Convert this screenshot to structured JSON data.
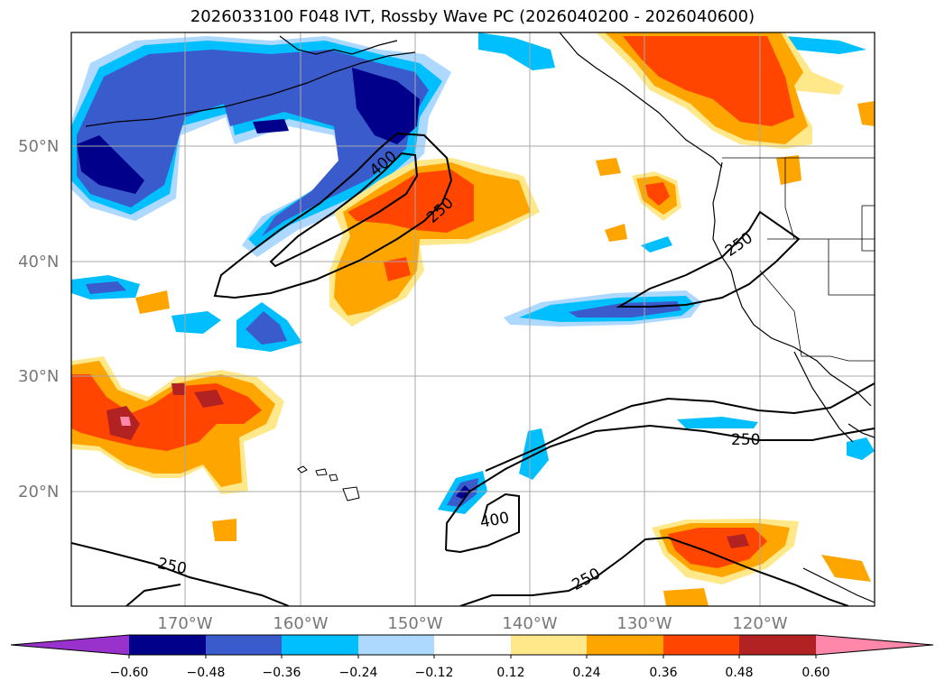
{
  "title": "2026033100 F048 IVT, Rossby Wave PC (2026040200 - 2026040600)",
  "map": {
    "lat_ticks": [
      "50°N",
      "40°N",
      "30°N",
      "20°N"
    ],
    "lon_ticks": [
      "170°W",
      "160°W",
      "150°W",
      "140°W",
      "130°W",
      "120°W"
    ],
    "contour_labels": [
      "400",
      "250",
      "250",
      "250",
      "400",
      "250",
      "250"
    ]
  },
  "colorbar": {
    "ticks": [
      "−0.60",
      "−0.48",
      "−0.36",
      "−0.24",
      "−0.12",
      "0.12",
      "0.24",
      "0.36",
      "0.48",
      "0.60"
    ],
    "colors": [
      "#9932cc",
      "#00008b",
      "#3a5bcc",
      "#00bfff",
      "#add8ff",
      "#ffffff",
      "#ffe88a",
      "#ffa500",
      "#ff4500",
      "#b22222",
      "#ff88aa"
    ]
  },
  "palette": {
    "neg_strong": "#00008b",
    "neg_mid": "#3a5bcc",
    "neg_light": "#00bfff",
    "neg_pale": "#add8ff",
    "pos_pale": "#ffe88a",
    "pos_light": "#ffa500",
    "pos_mid": "#ff4500",
    "pos_strong": "#b22222",
    "pos_max": "#ff88aa"
  }
}
